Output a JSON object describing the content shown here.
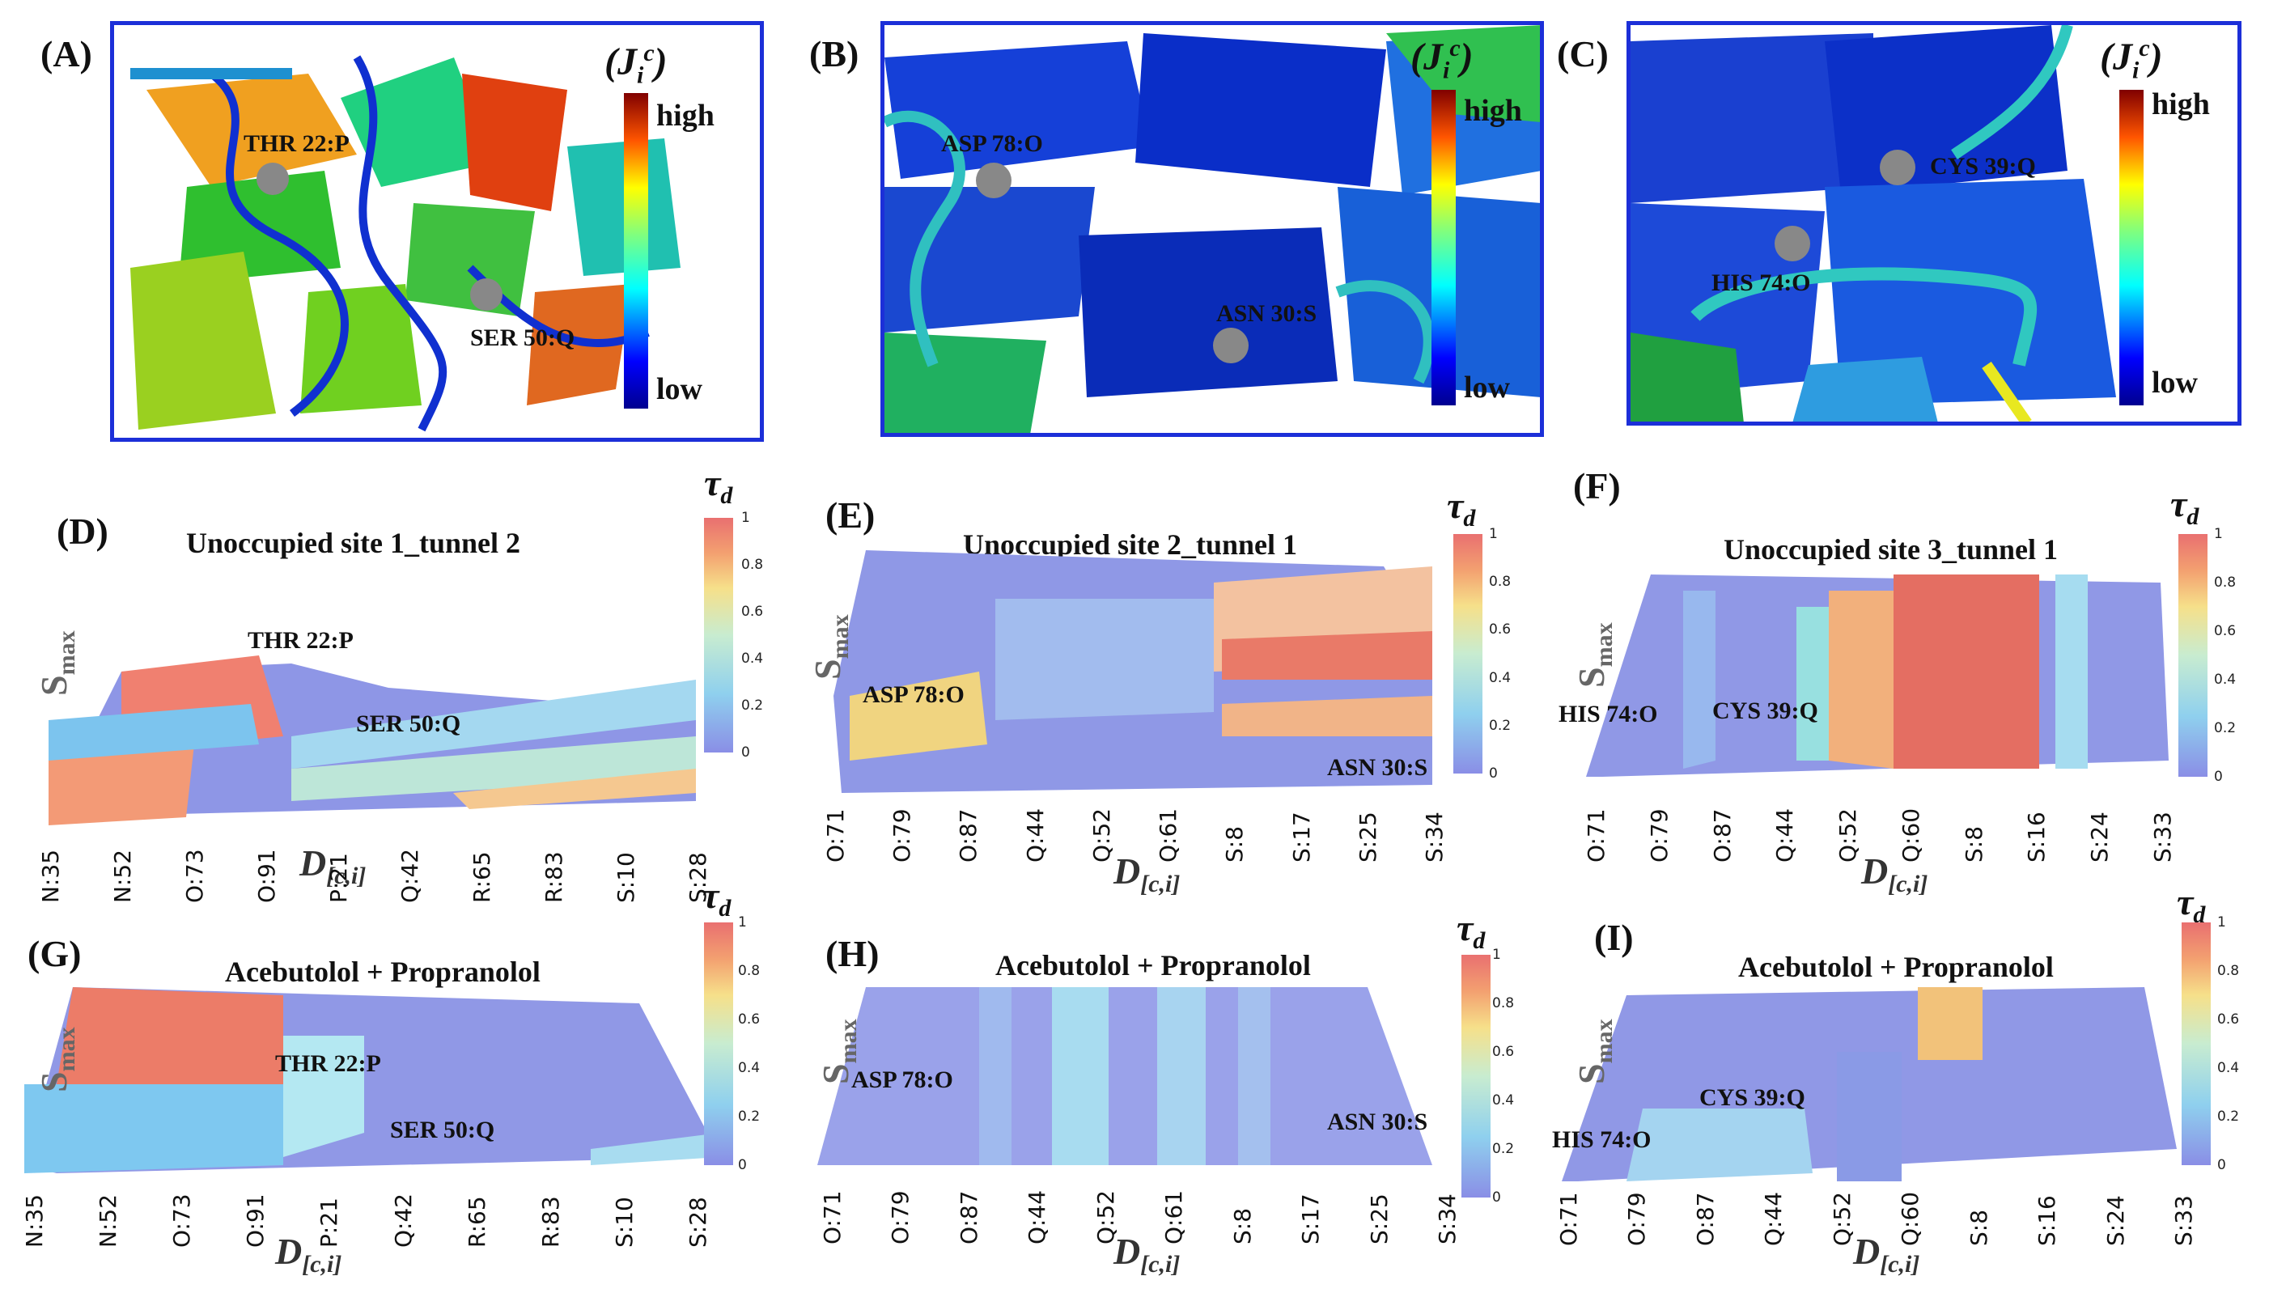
{
  "structure_panels": [
    {
      "letter": "(A)",
      "residues": [
        "THR 22:P",
        "SER 50:Q"
      ],
      "colorbar": {
        "title": "(J",
        "sub": "i",
        "sup": "c",
        "high": "high",
        "low": "low"
      }
    },
    {
      "letter": "(B)",
      "residues": [
        "ASP 78:O",
        "ASN 30:S"
      ],
      "colorbar": {
        "title": "(J",
        "sub": "i",
        "sup": "c",
        "high": "high",
        "low": "low"
      }
    },
    {
      "letter": "(C)",
      "residues": [
        "CYS 39:Q",
        "HIS 74:O"
      ],
      "colorbar": {
        "title": "(J",
        "sub": "i",
        "sup": "c",
        "high": "high",
        "low": "low"
      }
    }
  ],
  "surface_panels": [
    {
      "letter": "(D)",
      "title": "Unoccupied site 1_tunnel 2",
      "residues": [
        "THR 22:P",
        "SER 50:Q"
      ],
      "ticks": [
        "N:35",
        "N:52",
        "O:73",
        "O:91",
        "P:21",
        "Q:42",
        "R:65",
        "R:83",
        "S:10",
        "S:28"
      ]
    },
    {
      "letter": "(E)",
      "title": "Unoccupied site 2_tunnel 1",
      "residues": [
        "ASP 78:O",
        "ASN 30:S"
      ],
      "ticks": [
        "O:71",
        "O:79",
        "O:87",
        "Q:44",
        "Q:52",
        "Q:61",
        "S:8",
        "S:17",
        "S:25",
        "S:34"
      ]
    },
    {
      "letter": "(F)",
      "title": "Unoccupied site 3_tunnel 1",
      "residues": [
        "HIS 74:O",
        "CYS 39:Q"
      ],
      "ticks": [
        "O:71",
        "O:79",
        "O:87",
        "Q:44",
        "Q:52",
        "Q:60",
        "S:8",
        "S:16",
        "S:24",
        "S:33"
      ]
    },
    {
      "letter": "(G)",
      "title": "Acebutolol + Propranolol",
      "residues": [
        "THR 22:P",
        "SER 50:Q"
      ],
      "ticks": [
        "N:35",
        "N:52",
        "O:73",
        "O:91",
        "P:21",
        "Q:42",
        "R:65",
        "R:83",
        "S:10",
        "S:28"
      ]
    },
    {
      "letter": "(H)",
      "title": "Acebutolol + Propranolol",
      "residues": [
        "ASP 78:O",
        "ASN 30:S"
      ],
      "ticks": [
        "O:71",
        "O:79",
        "O:87",
        "Q:44",
        "Q:52",
        "Q:61",
        "S:8",
        "S:17",
        "S:25",
        "S:34"
      ]
    },
    {
      "letter": "(I)",
      "title": "Acebutolol + Propranolol",
      "residues": [
        "CYS 39:Q",
        "HIS 74:O"
      ],
      "ticks": [
        "O:71",
        "O:79",
        "O:87",
        "Q:44",
        "Q:52",
        "Q:60",
        "S:8",
        "S:16",
        "S:24",
        "S:33"
      ]
    }
  ],
  "axis": {
    "y": "S",
    "y_sub": "max",
    "x": "D",
    "x_sub": "[c,i]",
    "cbar": "τ",
    "cbar_sub": "d"
  },
  "cbar_ticks": [
    "1",
    "0.8",
    "0.6",
    "0.4",
    "0.2",
    "0"
  ]
}
